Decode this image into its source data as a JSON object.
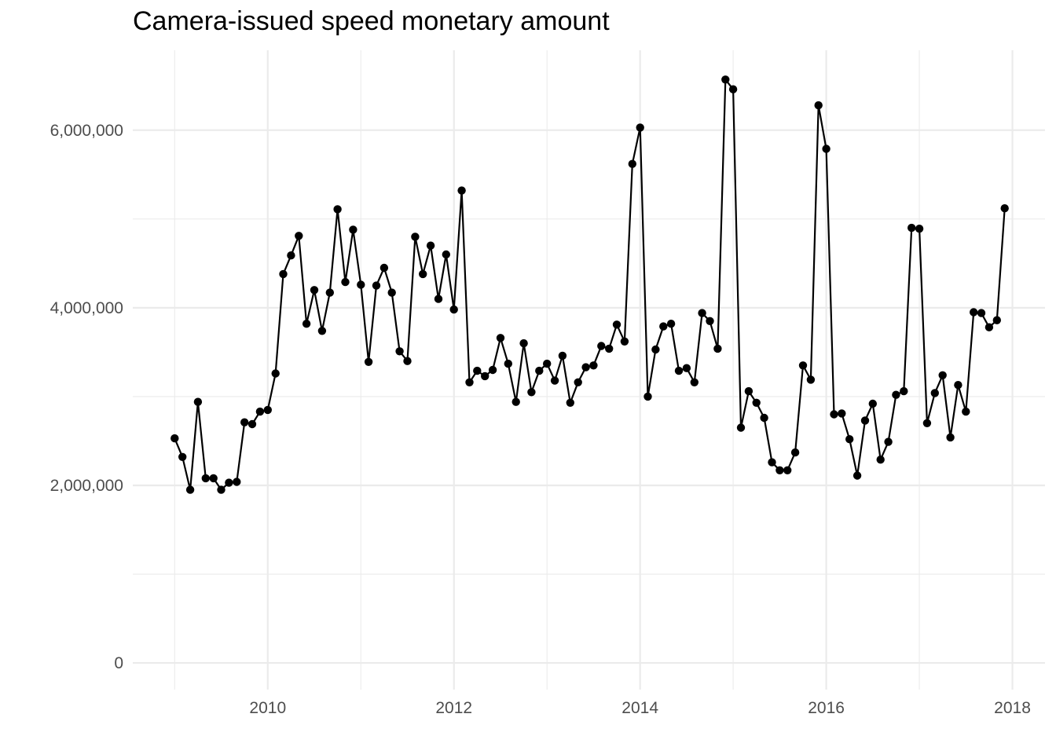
{
  "chart_data": {
    "type": "line",
    "title": "Camera-issued speed monetary amount",
    "xlabel": "",
    "ylabel": "",
    "xlim": [
      2008.55,
      2018.35
    ],
    "ylim": [
      -300000,
      6900000
    ],
    "x_ticks": [
      2010,
      2012,
      2014,
      2016,
      2018
    ],
    "x_tick_labels": [
      "2010",
      "2012",
      "2014",
      "2016",
      "2018"
    ],
    "y_ticks": [
      0,
      2000000,
      4000000,
      6000000
    ],
    "y_tick_labels": [
      "0",
      "2,000,000",
      "4,000,000",
      "6,000,000"
    ],
    "grid": true,
    "series": [
      {
        "name": "monetary amount",
        "color": "#000000",
        "start": 2009.0,
        "step_months": 1,
        "values": [
          2530000,
          2320000,
          1950000,
          2940000,
          2080000,
          2080000,
          1950000,
          2030000,
          2040000,
          2710000,
          2690000,
          2830000,
          2850000,
          3260000,
          4380000,
          4590000,
          4810000,
          3820000,
          4200000,
          3740000,
          4170000,
          5110000,
          4290000,
          4880000,
          4260000,
          3390000,
          4250000,
          4450000,
          4170000,
          3510000,
          3400000,
          4800000,
          4380000,
          4700000,
          4100000,
          4600000,
          3980000,
          5320000,
          3160000,
          3290000,
          3230000,
          3300000,
          3660000,
          3370000,
          2940000,
          3600000,
          3050000,
          3290000,
          3370000,
          3180000,
          3460000,
          2930000,
          3160000,
          3330000,
          3350000,
          3570000,
          3540000,
          3810000,
          3620000,
          5620000,
          6030000,
          3000000,
          3530000,
          3790000,
          3820000,
          3290000,
          3320000,
          3160000,
          3940000,
          3850000,
          3540000,
          6570000,
          6460000,
          2650000,
          3060000,
          2930000,
          2760000,
          2260000,
          2170000,
          2170000,
          2370000,
          3350000,
          3190000,
          6280000,
          5790000,
          2800000,
          2810000,
          2520000,
          2110000,
          2730000,
          2920000,
          2290000,
          2490000,
          3020000,
          3060000,
          4900000,
          4890000,
          2700000,
          3040000,
          3240000,
          2540000,
          3130000,
          2830000,
          3950000,
          3940000,
          3780000,
          3860000,
          5120000
        ]
      }
    ]
  }
}
